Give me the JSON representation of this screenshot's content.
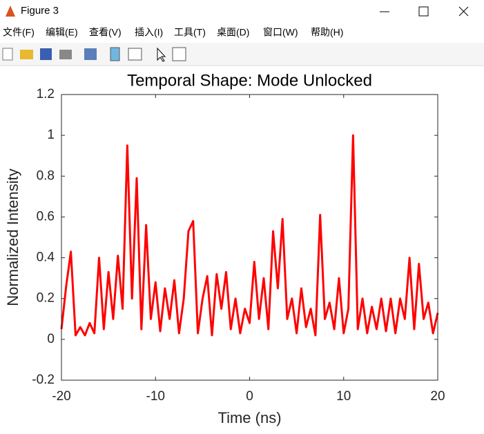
{
  "window": {
    "title": "Figure 3"
  },
  "menu": [
    "文件(F)",
    "编辑(E)",
    "查看(V)",
    "插入(I)",
    "工具(T)",
    "桌面(D)",
    "窗口(W)",
    "帮助(H)"
  ],
  "chart_data": {
    "type": "line",
    "title": "Temporal Shape: Mode Unlocked",
    "x_label": "Time (ns)",
    "y_label": "Normalized Intensity",
    "x": [
      -20,
      -19.5,
      -19,
      -18.5,
      -18,
      -17.5,
      -17,
      -16.5,
      -16,
      -15.5,
      -15,
      -14.5,
      -14,
      -13.5,
      -13,
      -12.5,
      -12,
      -11.5,
      -11,
      -10.5,
      -10,
      -9.5,
      -9,
      -8.5,
      -8,
      -7.5,
      -7,
      -6.5,
      -6,
      -5.5,
      -5,
      -4.5,
      -4,
      -3.5,
      -3,
      -2.5,
      -2,
      -1.5,
      -1,
      -0.5,
      0,
      0.5,
      1,
      1.5,
      2,
      2.5,
      3,
      3.5,
      4,
      4.5,
      5,
      5.5,
      6,
      6.5,
      7,
      7.5,
      8,
      8.5,
      9,
      9.5,
      10,
      10.5,
      11,
      11.5,
      12,
      12.5,
      13,
      13.5,
      14,
      14.5,
      15,
      15.5,
      16,
      16.5,
      17,
      17.5,
      18,
      18.5,
      19,
      19.5,
      20
    ],
    "series": [
      {
        "color": "#ff0000",
        "values": [
          0.05,
          0.26,
          0.43,
          0.02,
          0.06,
          0.02,
          0.08,
          0.03,
          0.4,
          0.05,
          0.33,
          0.1,
          0.41,
          0.15,
          0.95,
          0.2,
          0.79,
          0.05,
          0.56,
          0.1,
          0.28,
          0.04,
          0.25,
          0.1,
          0.29,
          0.03,
          0.2,
          0.53,
          0.58,
          0.03,
          0.2,
          0.31,
          0.02,
          0.32,
          0.15,
          0.33,
          0.05,
          0.2,
          0.03,
          0.15,
          0.08,
          0.38,
          0.1,
          0.3,
          0.05,
          0.53,
          0.25,
          0.59,
          0.1,
          0.2,
          0.03,
          0.25,
          0.06,
          0.15,
          0.02,
          0.61,
          0.1,
          0.18,
          0.05,
          0.3,
          0.03,
          0.15,
          1.0,
          0.05,
          0.2,
          0.03,
          0.16,
          0.05,
          0.2,
          0.04,
          0.2,
          0.03,
          0.2,
          0.1,
          0.4,
          0.05,
          0.37,
          0.1,
          0.18,
          0.03,
          0.13
        ]
      }
    ],
    "xlim": [
      -20,
      20
    ],
    "ylim": [
      -0.2,
      1.2
    ],
    "xticks": [
      -20,
      -10,
      0,
      10,
      20
    ],
    "yticks": [
      -0.2,
      0,
      0.2,
      0.4,
      0.6,
      0.8,
      1,
      1.2
    ],
    "grid": false
  }
}
